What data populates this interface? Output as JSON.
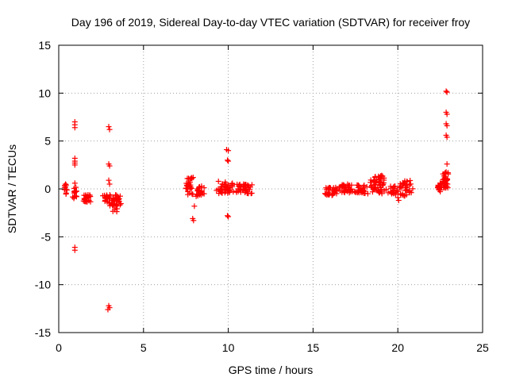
{
  "chart_data": {
    "type": "scatter",
    "title": "Day 196 of 2019, Sidereal Day-to-day VTEC variation (SDTVAR) for receiver froy",
    "xlabel": "GPS time / hours",
    "ylabel": "SDTVAR / TECUs",
    "xlim": [
      0,
      25
    ],
    "ylim": [
      -15,
      15
    ],
    "xticks": [
      0,
      5,
      10,
      15,
      20,
      25
    ],
    "yticks": [
      -15,
      -10,
      -5,
      0,
      5,
      10,
      15
    ],
    "grid": true,
    "marker": "+",
    "color": "#ff0000",
    "clusters": [
      {
        "x_range": [
          0.3,
          0.5
        ],
        "y_range": [
          -0.6,
          0.5
        ],
        "n": 10
      },
      {
        "x_range": [
          0.8,
          1.1
        ],
        "y_range": [
          -1.0,
          0.2
        ],
        "n": 14
      },
      {
        "x_range": [
          1.4,
          1.9
        ],
        "y_range": [
          -1.4,
          -0.6
        ],
        "n": 28
      },
      {
        "x_range": [
          2.6,
          3.1
        ],
        "y_range": [
          -1.5,
          -0.6
        ],
        "n": 22
      },
      {
        "x_range": [
          3.0,
          3.7
        ],
        "y_range": [
          -2.4,
          -0.6
        ],
        "n": 40
      },
      {
        "x_range": [
          7.4,
          8.0
        ],
        "y_range": [
          -0.6,
          1.2
        ],
        "n": 30
      },
      {
        "x_range": [
          8.0,
          8.6
        ],
        "y_range": [
          -0.8,
          0.3
        ],
        "n": 22
      },
      {
        "x_range": [
          9.3,
          10.4
        ],
        "y_range": [
          -0.5,
          0.8
        ],
        "n": 45
      },
      {
        "x_range": [
          10.4,
          11.5
        ],
        "y_range": [
          -0.5,
          0.5
        ],
        "n": 40
      },
      {
        "x_range": [
          15.6,
          16.5
        ],
        "y_range": [
          -0.7,
          0.2
        ],
        "n": 35
      },
      {
        "x_range": [
          16.5,
          17.4
        ],
        "y_range": [
          -0.4,
          0.5
        ],
        "n": 35
      },
      {
        "x_range": [
          17.4,
          18.2
        ],
        "y_range": [
          -0.5,
          0.4
        ],
        "n": 30
      },
      {
        "x_range": [
          18.2,
          19.5
        ],
        "y_range": [
          -0.5,
          1.4
        ],
        "n": 55
      },
      {
        "x_range": [
          19.5,
          20.0
        ],
        "y_range": [
          -0.6,
          0.3
        ],
        "n": 20
      },
      {
        "x_range": [
          20.0,
          20.9
        ],
        "y_range": [
          -0.8,
          0.9
        ],
        "n": 35
      },
      {
        "x_range": [
          22.3,
          22.6
        ],
        "y_range": [
          -0.3,
          0.6
        ],
        "n": 20
      },
      {
        "x_range": [
          22.6,
          23.0
        ],
        "y_range": [
          0.0,
          1.8
        ],
        "n": 35
      }
    ],
    "points": [
      [
        0.4,
        0.5
      ],
      [
        0.4,
        0.2
      ],
      [
        0.95,
        7.0
      ],
      [
        0.95,
        6.7
      ],
      [
        0.95,
        6.4
      ],
      [
        0.95,
        3.2
      ],
      [
        0.95,
        2.9
      ],
      [
        0.95,
        2.7
      ],
      [
        0.95,
        2.5
      ],
      [
        0.95,
        0.6
      ],
      [
        0.95,
        -6.1
      ],
      [
        0.95,
        -6.4
      ],
      [
        2.95,
        6.5
      ],
      [
        3.0,
        6.2
      ],
      [
        2.95,
        2.6
      ],
      [
        3.0,
        2.4
      ],
      [
        2.95,
        0.9
      ],
      [
        3.0,
        0.5
      ],
      [
        2.95,
        -12.2
      ],
      [
        3.0,
        -12.4
      ],
      [
        2.9,
        -12.6
      ],
      [
        8.0,
        -1.8
      ],
      [
        7.9,
        -3.1
      ],
      [
        7.95,
        -3.3
      ],
      [
        9.9,
        4.1
      ],
      [
        10.0,
        4.0
      ],
      [
        9.95,
        3.0
      ],
      [
        10.0,
        2.9
      ],
      [
        9.95,
        -2.8
      ],
      [
        10.0,
        -2.9
      ],
      [
        20.0,
        -0.9
      ],
      [
        20.05,
        -1.2
      ],
      [
        22.85,
        10.2
      ],
      [
        22.9,
        10.1
      ],
      [
        22.85,
        8.0
      ],
      [
        22.9,
        7.8
      ],
      [
        22.85,
        6.8
      ],
      [
        22.9,
        6.6
      ],
      [
        22.85,
        5.6
      ],
      [
        22.9,
        5.4
      ],
      [
        22.9,
        2.6
      ]
    ]
  }
}
